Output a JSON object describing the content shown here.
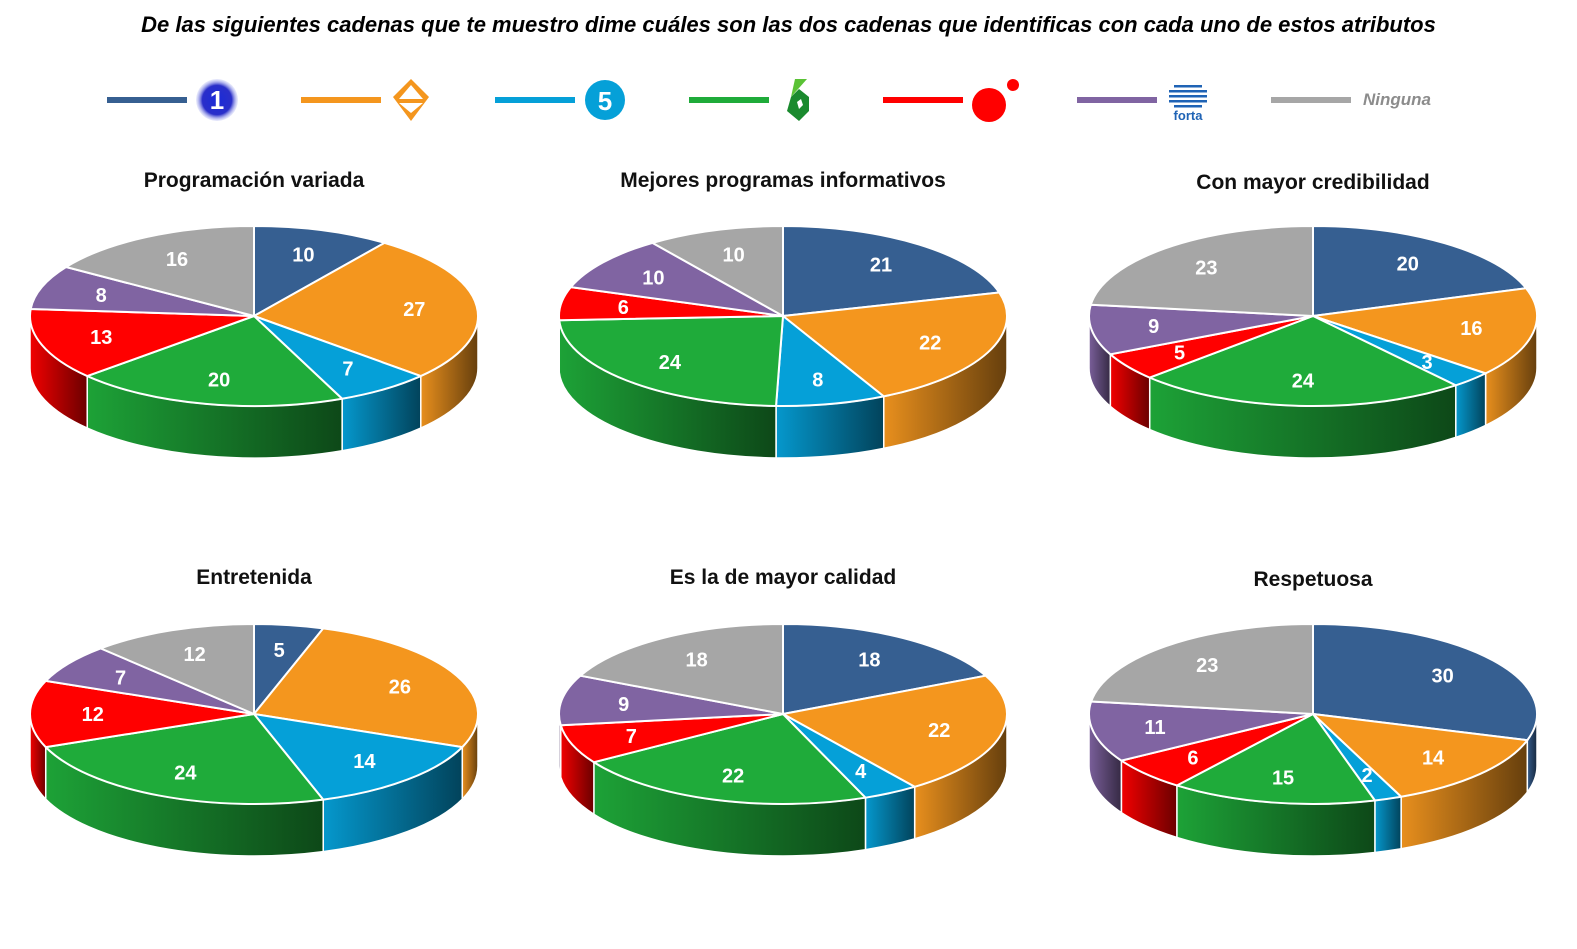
{
  "page": {
    "title": "De las siguientes cadenas que te muestro dime cuáles son las dos cadenas que identificas con cada uno de estos atributos"
  },
  "legend": [
    {
      "key": "la1",
      "icon": "tve-la1-logo-icon",
      "color": "#365f91"
    },
    {
      "key": "antena3",
      "icon": "antena3-logo-icon",
      "color": "#f4961e"
    },
    {
      "key": "telecinco",
      "icon": "telecinco-logo-icon",
      "color": "#05a0d8"
    },
    {
      "key": "lasexta",
      "icon": "lasexta-logo-icon",
      "color": "#1fab3a"
    },
    {
      "key": "cuatro",
      "icon": "cuatro-logo-icon",
      "color": "#ff0000"
    },
    {
      "key": "forta",
      "icon": "forta-logo-icon",
      "logo_text": "forta",
      "color": "#8064a2"
    },
    {
      "key": "ninguna",
      "label": "Ninguna",
      "color": "#a6a6a6"
    }
  ],
  "chart_data": [
    {
      "type": "pie",
      "title": "Programación variada",
      "series": [
        {
          "values": [
            10,
            27,
            7,
            20,
            13,
            8,
            16
          ]
        }
      ]
    },
    {
      "type": "pie",
      "title": "Mejores programas informativos",
      "series": [
        {
          "values": [
            21,
            22,
            8,
            24,
            6,
            10,
            10
          ]
        }
      ]
    },
    {
      "type": "pie",
      "title": "Con mayor credibilidad",
      "series": [
        {
          "values": [
            20,
            16,
            3,
            24,
            5,
            9,
            23
          ]
        }
      ]
    },
    {
      "type": "pie",
      "title": "Entretenida",
      "series": [
        {
          "values": [
            5,
            26,
            14,
            24,
            12,
            7,
            12
          ]
        }
      ]
    },
    {
      "type": "pie",
      "title": "Es la de mayor calidad",
      "series": [
        {
          "values": [
            18,
            22,
            4,
            22,
            7,
            9,
            18
          ]
        }
      ]
    },
    {
      "type": "pie",
      "title": "Respetuosa",
      "series": [
        {
          "values": [
            30,
            14,
            2,
            15,
            6,
            11,
            23
          ]
        }
      ]
    }
  ]
}
